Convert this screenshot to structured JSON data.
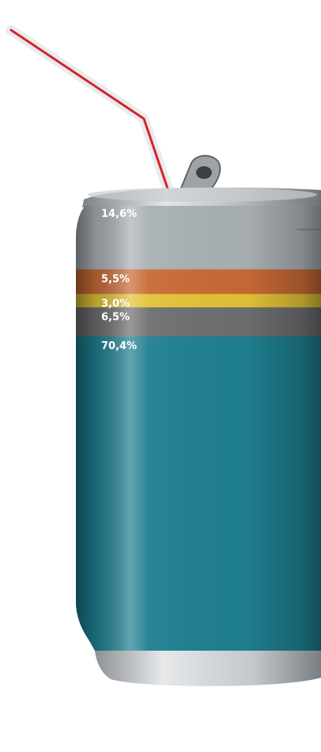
{
  "chart_data": {
    "type": "bar",
    "categories": [
      "segment-1",
      "segment-2",
      "segment-3",
      "segment-4",
      "segment-5"
    ],
    "values": [
      14.6,
      5.5,
      3.0,
      6.5,
      70.4
    ],
    "value_labels": [
      "14,6%",
      "5,5%",
      "3,0%",
      "6,5%",
      "70,4%"
    ],
    "colors": [
      "#a9b0b4",
      "#c76a35",
      "#e2c236",
      "#6d6e70",
      "#1e7f90"
    ],
    "stacked": true,
    "orientation": "vertical",
    "title": "",
    "xlabel": "",
    "ylabel": ""
  }
}
